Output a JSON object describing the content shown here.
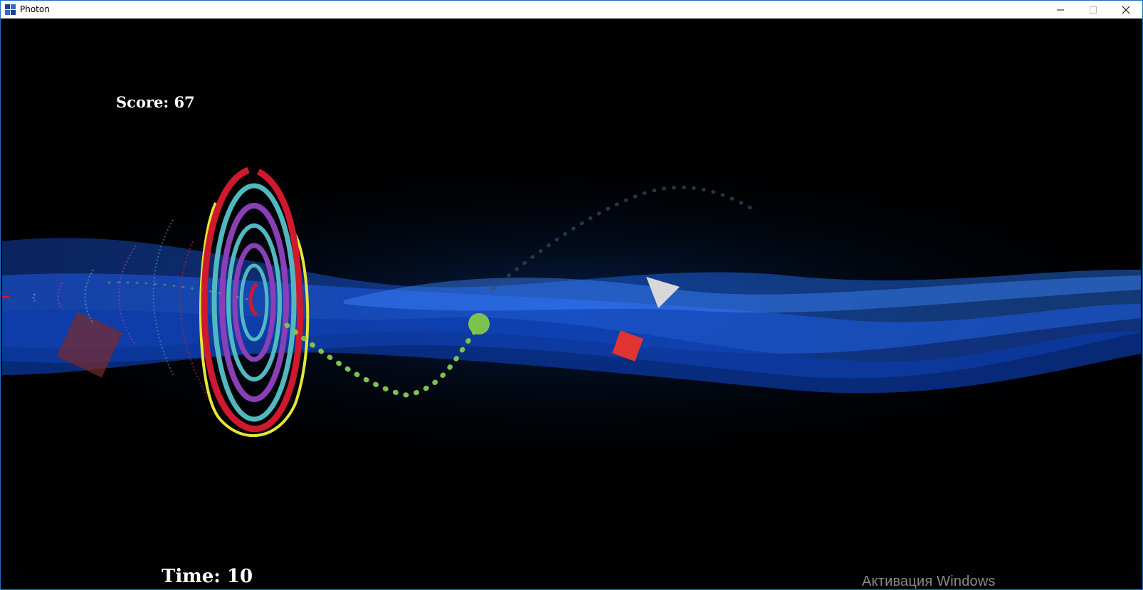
{
  "window": {
    "title": "Photon",
    "controls": [
      "minimize-icon",
      "maximize-icon",
      "close-icon"
    ]
  },
  "hud": {
    "score_label": "Score: 67",
    "score": 67,
    "time_label": "Time: 10",
    "time": 10
  },
  "overlay": {
    "activation_text": "Активация Windows"
  },
  "colors": {
    "background": "#000000",
    "wave": "#1e6bff",
    "player": "#7cc24f",
    "ring_red": "#d0192c",
    "ring_cyan": "#52b8c0",
    "ring_purple": "#8a3fb6",
    "ring_yellow": "#e6e63a",
    "enemy_square": "#e23333",
    "enemy_triangle": "#d8d8d8"
  },
  "icons": {
    "app": "photon-app-icon",
    "player": "player-orb-icon"
  }
}
